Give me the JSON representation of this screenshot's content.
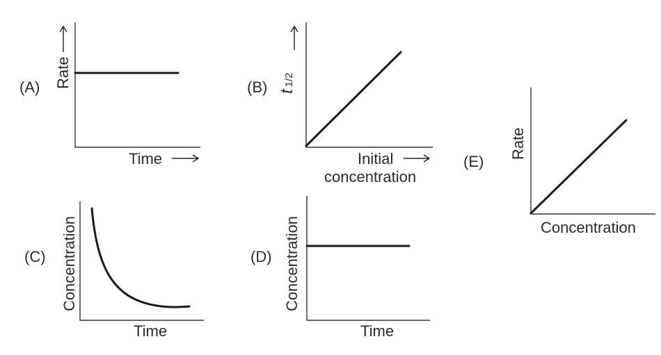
{
  "panels": {
    "A": {
      "tag": "(A)",
      "ylabel": "Rate",
      "xlabel": "Time",
      "plot": "constant"
    },
    "B": {
      "tag": "(B)",
      "ylabel_main": "t",
      "ylabel_sub": "1/2",
      "xlabel_line1": "Initial",
      "xlabel_line2": "concentration",
      "plot": "linear-through-origin"
    },
    "C": {
      "tag": "(C)",
      "ylabel": "Concentration",
      "xlabel": "Time",
      "plot": "exponential-decay"
    },
    "D": {
      "tag": "(D)",
      "ylabel": "Concentration",
      "xlabel": "Time",
      "plot": "constant"
    },
    "E": {
      "tag": "(E)",
      "ylabel": "Rate",
      "xlabel": "Concentration",
      "plot": "linear-through-origin"
    }
  }
}
